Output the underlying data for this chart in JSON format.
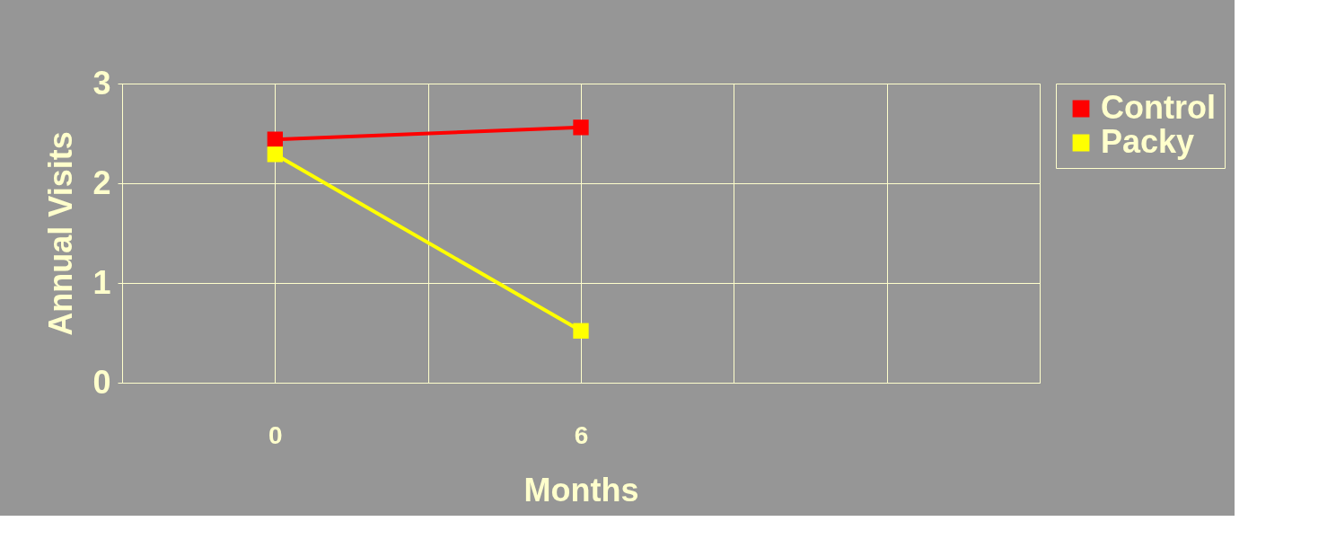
{
  "chart_data": {
    "type": "line",
    "xlabel": "Months",
    "ylabel": "Annual Visits",
    "x": [
      0,
      6
    ],
    "series": [
      {
        "name": "Control",
        "color": "#ff0000",
        "values": [
          2.44,
          2.56
        ]
      },
      {
        "name": "Packy",
        "color": "#ffff00",
        "values": [
          2.29,
          0.52
        ]
      }
    ],
    "xlim": [
      -3,
      15
    ],
    "xticks": [
      {
        "value": -3,
        "label": null
      },
      0,
      {
        "value": 3,
        "label": null
      },
      6,
      {
        "value": 9,
        "label": null
      },
      {
        "value": 12,
        "label": null
      },
      {
        "value": 15,
        "label": null
      }
    ],
    "ylim": [
      0,
      3
    ],
    "yticks": [
      0,
      1,
      2,
      3
    ],
    "grid": true,
    "legend": "right",
    "marker": "square",
    "line_style": "solid"
  }
}
